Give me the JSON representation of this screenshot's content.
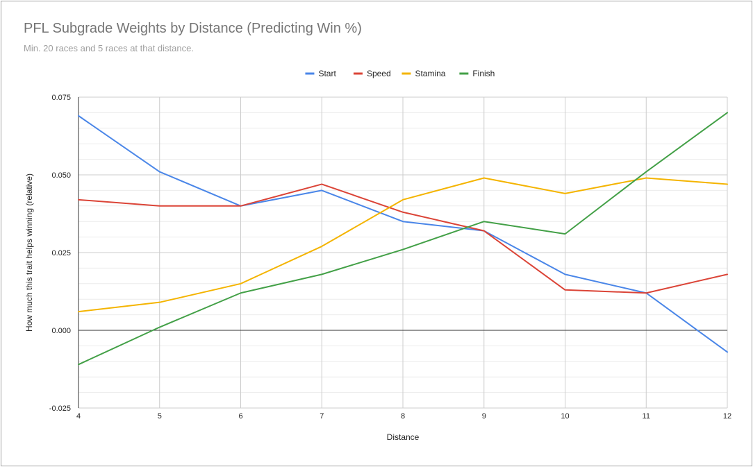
{
  "chart_data": {
    "type": "line",
    "title": "PFL Subgrade Weights by Distance (Predicting Win %)",
    "subtitle": "Min. 20 races and 5 races at that distance.",
    "xlabel": "Distance",
    "ylabel": "How much this trait helps winning (relative)",
    "x": [
      4,
      5,
      6,
      7,
      8,
      9,
      10,
      11,
      12
    ],
    "xlim": [
      4,
      12
    ],
    "ylim": [
      -0.025,
      0.075
    ],
    "yticks": [
      "-0.025",
      "0.000",
      "0.025",
      "0.050",
      "0.075"
    ],
    "ytick_values": [
      -0.025,
      0,
      0.025,
      0.05,
      0.075
    ],
    "legend_position": "top-center",
    "grid": true,
    "series": [
      {
        "name": "Start",
        "color": "#4a86e8",
        "values": [
          0.069,
          0.051,
          0.04,
          0.045,
          0.035,
          0.032,
          0.018,
          0.012,
          -0.007
        ]
      },
      {
        "name": "Speed",
        "color": "#db4437",
        "values": [
          0.042,
          0.04,
          0.04,
          0.047,
          0.038,
          0.032,
          0.013,
          0.012,
          0.018
        ]
      },
      {
        "name": "Stamina",
        "color": "#f4b400",
        "values": [
          0.006,
          0.009,
          0.015,
          0.027,
          0.042,
          0.049,
          0.044,
          0.049,
          0.047
        ]
      },
      {
        "name": "Finish",
        "color": "#43a047",
        "values": [
          -0.011,
          0.001,
          0.012,
          0.018,
          0.026,
          0.035,
          0.031,
          0.051,
          0.07
        ]
      }
    ]
  }
}
